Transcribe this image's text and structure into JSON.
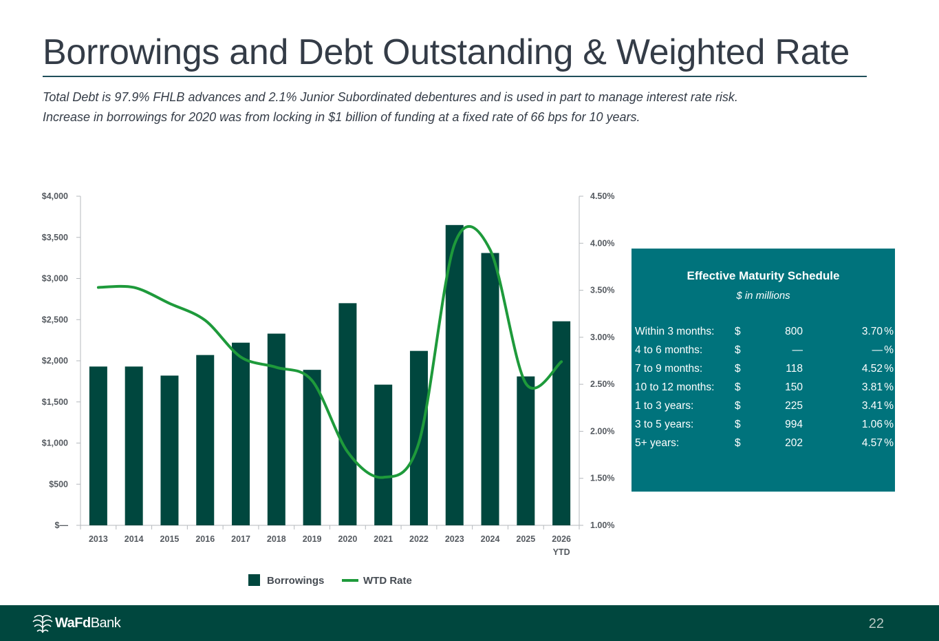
{
  "header": {
    "title": "Borrowings and Debt Outstanding & Weighted Rate",
    "subtitle_line1": "Total Debt is 97.9% FHLB advances and 2.1% Junior Subordinated debentures and is used in part to manage interest rate risk.",
    "subtitle_line2": "Increase in borrowings for 2020 was from locking in $1 billion of funding at a fixed rate of 66 bps for 10 years."
  },
  "chart_data": {
    "type": "bar",
    "categories": [
      "2013",
      "2014",
      "2015",
      "2016",
      "2017",
      "2018",
      "2019",
      "2020",
      "2021",
      "2022",
      "2023",
      "2024",
      "2025",
      "2026 YTD"
    ],
    "category_labels": [
      [
        "2013"
      ],
      [
        "2014"
      ],
      [
        "2015"
      ],
      [
        "2016"
      ],
      [
        "2017"
      ],
      [
        "2018"
      ],
      [
        "2019"
      ],
      [
        "2020"
      ],
      [
        "2021"
      ],
      [
        "2022"
      ],
      [
        "2023"
      ],
      [
        "2024"
      ],
      [
        "2025"
      ],
      [
        "2026",
        "YTD"
      ]
    ],
    "series": [
      {
        "name": "Borrowings",
        "type": "bar",
        "axis": "left",
        "values": [
          1930,
          1930,
          1820,
          2070,
          2220,
          2330,
          1890,
          2700,
          1710,
          2120,
          3650,
          3310,
          1810,
          2480
        ],
        "color": "#00473e"
      },
      {
        "name": "WTD Rate",
        "type": "line",
        "axis": "right",
        "values": [
          3.53,
          3.53,
          3.36,
          3.18,
          2.79,
          2.68,
          2.54,
          1.78,
          1.51,
          1.88,
          3.99,
          3.93,
          2.51,
          2.74
        ],
        "color": "#1e9a3b"
      }
    ],
    "y_left": {
      "ticks": [
        "$—",
        "$500",
        "$1,000",
        "$1,500",
        "$2,000",
        "$2,500",
        "$3,000",
        "$3,500",
        "$4,000"
      ],
      "min": 0,
      "max": 4000
    },
    "y_right": {
      "ticks": [
        "1.00%",
        "1.50%",
        "2.00%",
        "2.50%",
        "3.00%",
        "3.50%",
        "4.00%",
        "4.50%"
      ],
      "min": 1.0,
      "max": 4.5
    },
    "legend": {
      "position": "bottom",
      "items": [
        "Borrowings",
        "WTD Rate"
      ]
    }
  },
  "maturity": {
    "title": "Effective Maturity Schedule",
    "subtitle": "$ in millions",
    "rows": [
      {
        "label": "Within 3 months:",
        "dollar": "$",
        "amount": "800",
        "rate": "3.70",
        "pct": "%"
      },
      {
        "label": "4 to 6 months:",
        "dollar": "$",
        "amount": "—",
        "rate": "—",
        "pct": "%"
      },
      {
        "label": "7 to 9 months:",
        "dollar": "$",
        "amount": "118",
        "rate": "4.52",
        "pct": "%"
      },
      {
        "label": "10 to 12 months:",
        "dollar": "$",
        "amount": "150",
        "rate": "3.81",
        "pct": "%"
      },
      {
        "label": "1 to 3 years:",
        "dollar": "$",
        "amount": "225",
        "rate": "3.41",
        "pct": "%"
      },
      {
        "label": "3 to 5 years:",
        "dollar": "$",
        "amount": "994",
        "rate": "1.06",
        "pct": "%"
      },
      {
        "label": "5+ years:",
        "dollar": "$",
        "amount": "202",
        "rate": "4.57",
        "pct": "%"
      }
    ]
  },
  "footer": {
    "logo_bold": "WaFd",
    "logo_regular": "Bank",
    "page_number": "22"
  },
  "colors": {
    "bar": "#00473e",
    "line": "#1e9a3b",
    "box": "#00737c",
    "footer": "#00473e"
  }
}
